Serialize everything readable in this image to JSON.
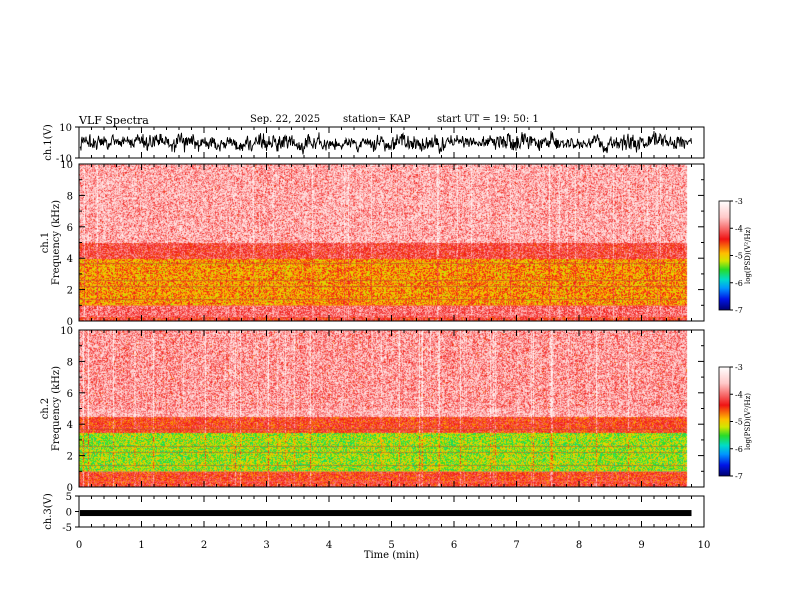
{
  "header": {
    "title": "VLF Spectra",
    "date": "Sep. 22, 2025",
    "station": "station= KAP",
    "start": "start UT =  19: 50: 1"
  },
  "chart_data": [
    {
      "type": "line",
      "name": "ch1-waveform",
      "ylabel": "ch.1(V)",
      "ylim": [
        -10,
        10
      ],
      "yticks": [
        "10",
        "-10"
      ],
      "xlim": [
        0,
        10
      ],
      "trace_end_min": 9.8,
      "grid": false
    },
    {
      "type": "heatmap",
      "name": "ch1-spectrogram",
      "ylabel_line1": "ch.1",
      "ylabel_line2": "Frequency (kHz)",
      "ylim": [
        0,
        10
      ],
      "yticks": [
        "0",
        "2",
        "4",
        "6",
        "8",
        "10"
      ],
      "xlim": [
        0,
        10
      ],
      "data_end_min": 9.8,
      "bands_khz": [
        {
          "from": 0,
          "to": 0.3,
          "log_psd": -4.3
        },
        {
          "from": 0.3,
          "to": 1.0,
          "log_psd": -4.0
        },
        {
          "from": 1.0,
          "to": 4.0,
          "log_psd": -4.8
        },
        {
          "from": 4.0,
          "to": 5.0,
          "log_psd": -4.2
        },
        {
          "from": 5.0,
          "to": 10.0,
          "log_psd": -3.6
        }
      ]
    },
    {
      "type": "heatmap",
      "name": "ch2-spectrogram",
      "ylabel_line1": "ch.2",
      "ylabel_line2": "Frequency (kHz)",
      "ylim": [
        0,
        10
      ],
      "yticks": [
        "0",
        "2",
        "4",
        "6",
        "8",
        "10"
      ],
      "xlim": [
        0,
        10
      ],
      "data_end_min": 9.8,
      "bands_khz": [
        {
          "from": 0,
          "to": 0.3,
          "log_psd": -4.3
        },
        {
          "from": 0.3,
          "to": 1.0,
          "log_psd": -4.4
        },
        {
          "from": 1.0,
          "to": 3.5,
          "log_psd": -5.3
        },
        {
          "from": 3.5,
          "to": 4.5,
          "log_psd": -4.4
        },
        {
          "from": 4.5,
          "to": 10.0,
          "log_psd": -3.7
        }
      ]
    },
    {
      "type": "line",
      "name": "ch3-waveform",
      "ylabel": "ch.3(V)",
      "ylim": [
        -5,
        5
      ],
      "yticks": [
        "5",
        "0",
        "-5"
      ],
      "xlim": [
        0,
        10
      ],
      "level": -0.5,
      "trace_end_min": 9.8,
      "grid": false
    }
  ],
  "xaxis": {
    "label": "Time (min)",
    "ticks": [
      "0",
      "1",
      "2",
      "3",
      "4",
      "5",
      "6",
      "7",
      "8",
      "9",
      "10"
    ]
  },
  "colorbar": {
    "label": "log(PSD)(V²/Hz)",
    "range": [
      -7,
      -3
    ],
    "ticks": [
      "-3",
      "-4",
      "-5",
      "-6",
      "-7"
    ]
  },
  "colors": {
    "axes": "#000000",
    "trace": "#000000",
    "background": "#ffffff"
  }
}
